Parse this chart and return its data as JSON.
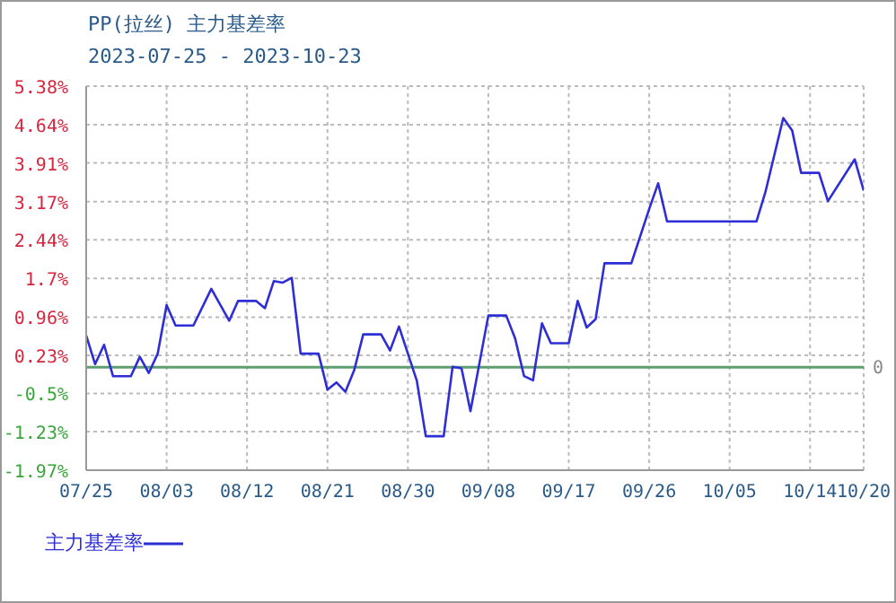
{
  "chart_data": {
    "type": "line",
    "title": "PP(拉丝) 主力基差率",
    "subtitle": "2023-07-25 - 2023-10-23",
    "x": [
      "2023-07-25",
      "2023-07-26",
      "2023-07-27",
      "2023-07-28",
      "2023-07-30",
      "2023-07-31",
      "2023-08-01",
      "2023-08-02",
      "2023-08-03",
      "2023-08-04",
      "2023-08-06",
      "2023-08-08",
      "2023-08-10",
      "2023-08-11",
      "2023-08-13",
      "2023-08-14",
      "2023-08-15",
      "2023-08-16",
      "2023-08-17",
      "2023-08-18",
      "2023-08-20",
      "2023-08-21",
      "2023-08-22",
      "2023-08-23",
      "2023-08-24",
      "2023-08-25",
      "2023-08-27",
      "2023-08-28",
      "2023-08-29",
      "2023-08-31",
      "2023-09-01",
      "2023-09-03",
      "2023-09-04",
      "2023-09-05",
      "2023-09-06",
      "2023-09-08",
      "2023-09-10",
      "2023-09-11",
      "2023-09-12",
      "2023-09-13",
      "2023-09-14",
      "2023-09-15",
      "2023-09-17",
      "2023-09-18",
      "2023-09-19",
      "2023-09-20",
      "2023-09-21",
      "2023-09-24",
      "2023-09-26",
      "2023-09-27",
      "2023-09-28",
      "2023-10-08",
      "2023-10-09",
      "2023-10-11",
      "2023-10-12",
      "2023-10-13",
      "2023-10-15",
      "2023-10-16",
      "2023-10-19",
      "2023-10-20"
    ],
    "series": [
      {
        "name": "主力基差率",
        "color": "#2e2ed6",
        "values": [
          0.61,
          0.06,
          0.43,
          -0.17,
          -0.17,
          0.2,
          -0.11,
          0.26,
          1.19,
          0.8,
          0.8,
          1.5,
          0.89,
          1.27,
          1.27,
          1.13,
          1.65,
          1.62,
          1.71,
          0.26,
          0.26,
          -0.43,
          -0.29,
          -0.47,
          -0.05,
          0.63,
          0.63,
          0.32,
          0.78,
          -0.26,
          -1.32,
          -1.32,
          0.01,
          -0.02,
          -0.84,
          0.99,
          0.99,
          0.55,
          -0.17,
          -0.25,
          0.84,
          0.46,
          0.46,
          1.27,
          0.76,
          0.92,
          1.99,
          1.99,
          3.03,
          3.52,
          2.79,
          2.79,
          3.35,
          4.77,
          4.53,
          3.72,
          3.72,
          3.18,
          3.98,
          3.38
        ]
      }
    ],
    "xlim": [
      "2023-07-25",
      "2023-10-20"
    ],
    "xticks": [
      {
        "value": "2023-07-25",
        "label": "07/25"
      },
      {
        "value": "2023-08-03",
        "label": "08/03"
      },
      {
        "value": "2023-08-12",
        "label": "08/12"
      },
      {
        "value": "2023-08-21",
        "label": "08/21"
      },
      {
        "value": "2023-08-30",
        "label": "08/30"
      },
      {
        "value": "2023-09-08",
        "label": "09/08"
      },
      {
        "value": "2023-09-17",
        "label": "09/17"
      },
      {
        "value": "2023-09-26",
        "label": "09/26"
      },
      {
        "value": "2023-10-05",
        "label": "10/05"
      },
      {
        "value": "2023-10-14",
        "label": "10/14"
      },
      {
        "value": "2023-10-20",
        "label": "10/20"
      }
    ],
    "ylim": [
      -1.97,
      5.38
    ],
    "yticks": [
      {
        "value": -1.97,
        "label": "-1.97%"
      },
      {
        "value": -1.23,
        "label": "-1.23%"
      },
      {
        "value": -0.5,
        "label": "-0.5%"
      },
      {
        "value": 0.23,
        "label": "0.23%"
      },
      {
        "value": 0.96,
        "label": "0.96%"
      },
      {
        "value": 1.7,
        "label": "1.7%"
      },
      {
        "value": 2.44,
        "label": "2.44%"
      },
      {
        "value": 3.17,
        "label": "3.17%"
      },
      {
        "value": 3.91,
        "label": "3.91%"
      },
      {
        "value": 4.64,
        "label": "4.64%"
      },
      {
        "value": 5.38,
        "label": "5.38%"
      }
    ],
    "ref_lines": [
      {
        "axis": "y",
        "value": 0,
        "label": "0",
        "color": "#5f9f6f"
      }
    ],
    "grid": true,
    "legend": "bottom left",
    "line_style": "solid",
    "marker": "none"
  }
}
